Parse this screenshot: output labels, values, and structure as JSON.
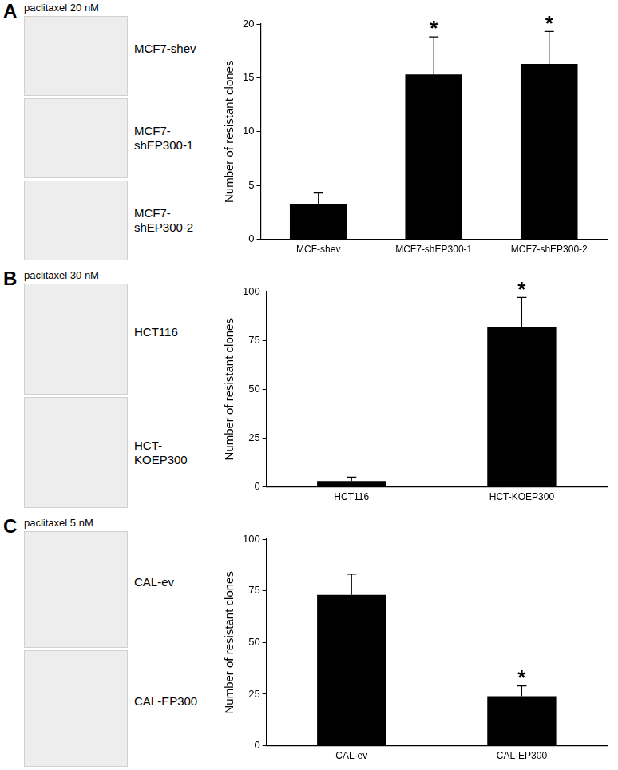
{
  "panels": [
    {
      "letter": "A",
      "treatment": "paclitaxel 20 nM",
      "image_labels": [
        "MCF7-shev",
        "MCF7-shEP300-1",
        "MCF7-shEP300-2"
      ]
    },
    {
      "letter": "B",
      "treatment": "paclitaxel 30 nM",
      "image_labels": [
        "HCT116",
        "HCT-KOEP300"
      ]
    },
    {
      "letter": "C",
      "treatment": "paclitaxel 5 nM",
      "image_labels": [
        "CAL-ev",
        "CAL-EP300"
      ]
    }
  ],
  "chart_data": [
    {
      "type": "bar",
      "y_label": "Number of resistant clones",
      "categories": [
        "MCF-shev",
        "MCF7-shEP300-1",
        "MCF7-shEP300-2"
      ],
      "values": [
        3.3,
        15.3,
        16.3
      ],
      "errors": [
        1.0,
        3.5,
        3.0
      ],
      "color": "#000000",
      "ylim": [
        0,
        20
      ],
      "yticks": [
        0,
        5,
        10,
        15,
        20
      ],
      "grid": false,
      "annotations": [
        {
          "category": "MCF7-shEP300-1",
          "text": "*"
        },
        {
          "category": "MCF7-shEP300-2",
          "text": "*"
        }
      ]
    },
    {
      "type": "bar",
      "y_label": "Number of resistant clones",
      "categories": [
        "HCT116",
        "HCT-KOEP300"
      ],
      "values": [
        3,
        82
      ],
      "errors": [
        2,
        15
      ],
      "color": "#000000",
      "ylim": [
        0,
        100
      ],
      "yticks": [
        0,
        25,
        50,
        75,
        100
      ],
      "grid": false,
      "annotations": [
        {
          "category": "HCT-KOEP300",
          "text": "*"
        }
      ]
    },
    {
      "type": "bar",
      "y_label": "Number of resistant clones",
      "categories": [
        "CAL-ev",
        "CAL-EP300"
      ],
      "values": [
        73,
        24
      ],
      "errors": [
        10,
        5
      ],
      "color": "#000000",
      "ylim": [
        0,
        100
      ],
      "yticks": [
        0,
        25,
        50,
        75,
        100
      ],
      "grid": false,
      "annotations": [
        {
          "category": "CAL-EP300",
          "text": "*"
        }
      ]
    }
  ]
}
